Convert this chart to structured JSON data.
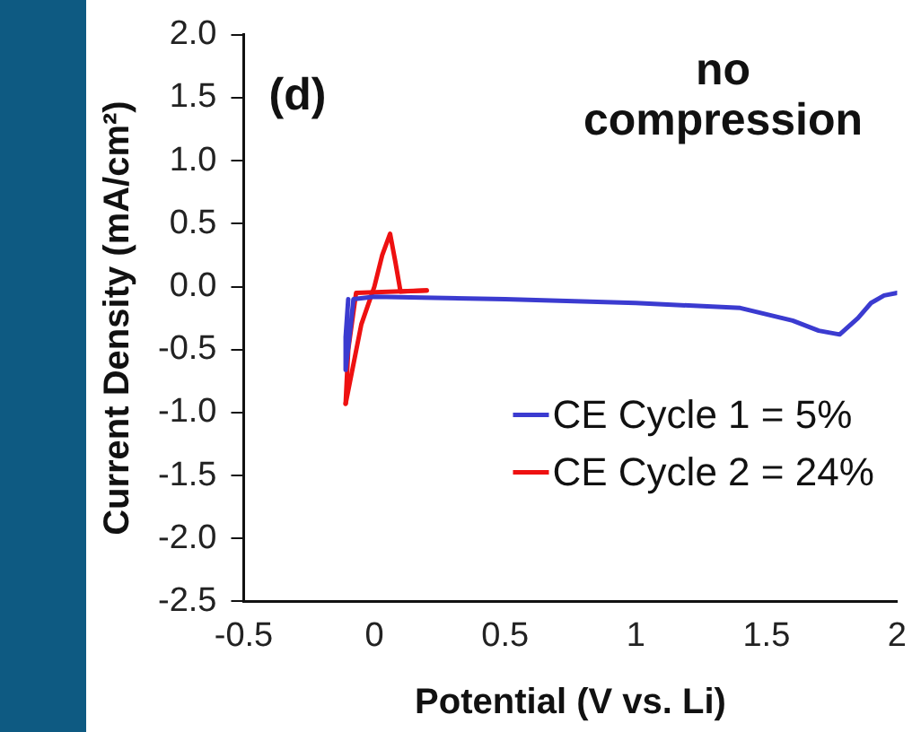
{
  "chart_data": {
    "type": "line",
    "xlabel": "Potential (V vs. Li)",
    "ylabel": "Current Density (mA/cm²)",
    "annotations": [
      "(d)",
      "no compression"
    ],
    "xlim": [
      -0.5,
      2
    ],
    "xticks": [
      -0.5,
      0,
      0.5,
      1,
      1.5,
      2
    ],
    "ylim": [
      -2.5,
      2.0
    ],
    "yticks": [
      {
        "value": -2.5,
        "label": "-2.5"
      },
      {
        "value": -2.0,
        "label": "-2.0"
      },
      {
        "value": -1.5,
        "label": "-1.5"
      },
      {
        "value": -1.0,
        "label": "-1.0"
      },
      {
        "value": -0.5,
        "label": "-0.5"
      },
      {
        "value": 0,
        "label": "0.0"
      },
      {
        "value": 0.5,
        "label": "0.5"
      },
      {
        "value": 1.0,
        "label": "1.0"
      },
      {
        "value": 1.5,
        "label": "1.5"
      },
      {
        "value": 2.0,
        "label": "2.0"
      }
    ],
    "grid": false,
    "legend": "bottom right",
    "marker": "none",
    "line_style": "solid",
    "series": [
      {
        "name": "CE Cycle 1 = 5%",
        "color": "#3b3bd0",
        "x": [
          -0.1,
          -0.11,
          -0.11,
          -0.09,
          -0.08,
          0,
          0.5,
          1.0,
          1.4,
          1.6,
          1.7,
          1.78,
          1.85,
          1.9,
          1.95,
          2.0
        ],
        "values": [
          -0.1,
          -0.4,
          -0.66,
          -0.3,
          -0.1,
          -0.08,
          -0.1,
          -0.13,
          -0.17,
          -0.27,
          -0.35,
          -0.38,
          -0.25,
          -0.13,
          -0.07,
          -0.05
        ]
      },
      {
        "name": "CE Cycle 2 = 24%",
        "color": "#ee1111",
        "x": [
          0.2,
          -0.07,
          -0.1,
          -0.11
        ],
        "values": [
          -0.03,
          -0.05,
          -0.5,
          -0.93
        ]
      },
      {
        "color": "#ee1111",
        "x": [
          -0.11,
          -0.05,
          0.0,
          0.03,
          0.06,
          0.08,
          0.1,
          0.2
        ],
        "values": [
          -0.93,
          -0.3,
          0.0,
          0.25,
          0.42,
          0.2,
          -0.04,
          -0.03
        ]
      }
    ]
  }
}
